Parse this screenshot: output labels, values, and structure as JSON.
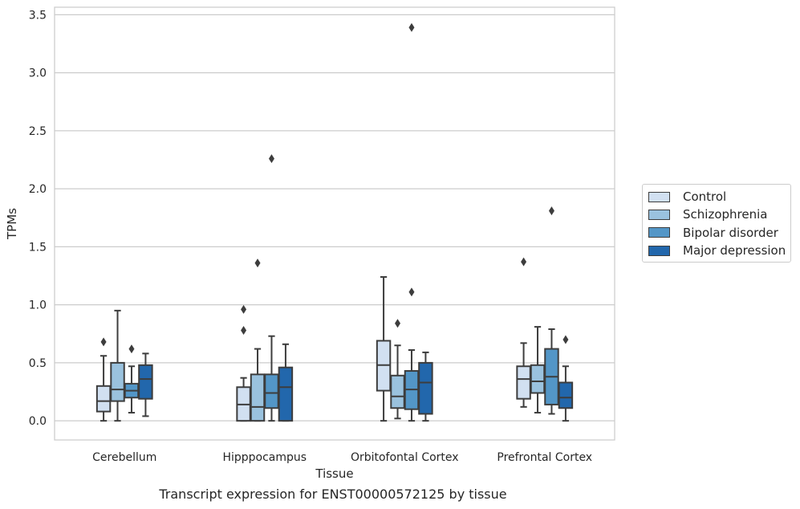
{
  "chart_data": {
    "type": "box",
    "caption": "Transcript expression for ENST00000572125 by tissue",
    "xlabel": "Tissue",
    "ylabel": "TPMs",
    "ylim": [
      -0.165,
      3.565
    ],
    "yticks": [
      "0.0",
      "0.5",
      "1.0",
      "1.5",
      "2.0",
      "2.5",
      "3.0",
      "3.5"
    ],
    "grid": true,
    "legend_position": "right",
    "categories": [
      "Cerebellum",
      "Hipppocampus",
      "Orbitofontal Cortex",
      "Prefrontal Cortex"
    ],
    "series": [
      {
        "name": "Control",
        "color": "#d1e0f1",
        "boxes": [
          {
            "min": 0.0,
            "q1": 0.08,
            "median": 0.17,
            "q3": 0.3,
            "max": 0.56,
            "outliers": [
              0.68
            ]
          },
          {
            "min": 0.0,
            "q1": 0.0,
            "median": 0.14,
            "q3": 0.29,
            "max": 0.37,
            "outliers": [
              0.78,
              0.96
            ]
          },
          {
            "min": 0.0,
            "q1": 0.26,
            "median": 0.48,
            "q3": 0.69,
            "max": 1.24,
            "outliers": []
          },
          {
            "min": 0.12,
            "q1": 0.19,
            "median": 0.36,
            "q3": 0.47,
            "max": 0.67,
            "outliers": [
              1.37
            ]
          }
        ]
      },
      {
        "name": "Schizophrenia",
        "color": "#9ac2de",
        "boxes": [
          {
            "min": 0.0,
            "q1": 0.17,
            "median": 0.27,
            "q3": 0.5,
            "max": 0.95,
            "outliers": []
          },
          {
            "min": 0.0,
            "q1": 0.0,
            "median": 0.12,
            "q3": 0.4,
            "max": 0.62,
            "outliers": [
              1.36
            ]
          },
          {
            "min": 0.02,
            "q1": 0.11,
            "median": 0.21,
            "q3": 0.39,
            "max": 0.65,
            "outliers": [
              0.84
            ]
          },
          {
            "min": 0.07,
            "q1": 0.24,
            "median": 0.34,
            "q3": 0.48,
            "max": 0.81,
            "outliers": []
          }
        ]
      },
      {
        "name": "Bipolar disorder",
        "color": "#5396c7",
        "boxes": [
          {
            "min": 0.07,
            "q1": 0.2,
            "median": 0.26,
            "q3": 0.32,
            "max": 0.47,
            "outliers": [
              0.62
            ]
          },
          {
            "min": 0.0,
            "q1": 0.11,
            "median": 0.24,
            "q3": 0.4,
            "max": 0.73,
            "outliers": [
              2.26
            ]
          },
          {
            "min": 0.0,
            "q1": 0.1,
            "median": 0.27,
            "q3": 0.43,
            "max": 0.61,
            "outliers": [
              1.11,
              3.39
            ]
          },
          {
            "min": 0.06,
            "q1": 0.14,
            "median": 0.38,
            "q3": 0.62,
            "max": 0.79,
            "outliers": [
              1.81
            ]
          }
        ]
      },
      {
        "name": "Major depression",
        "color": "#2267ac",
        "boxes": [
          {
            "min": 0.04,
            "q1": 0.19,
            "median": 0.36,
            "q3": 0.48,
            "max": 0.58,
            "outliers": []
          },
          {
            "min": 0.0,
            "q1": 0.0,
            "median": 0.29,
            "q3": 0.46,
            "max": 0.66,
            "outliers": []
          },
          {
            "min": 0.0,
            "q1": 0.06,
            "median": 0.33,
            "q3": 0.5,
            "max": 0.59,
            "outliers": []
          },
          {
            "min": 0.0,
            "q1": 0.11,
            "median": 0.2,
            "q3": 0.33,
            "max": 0.47,
            "outliers": [
              0.7
            ]
          }
        ]
      }
    ]
  }
}
